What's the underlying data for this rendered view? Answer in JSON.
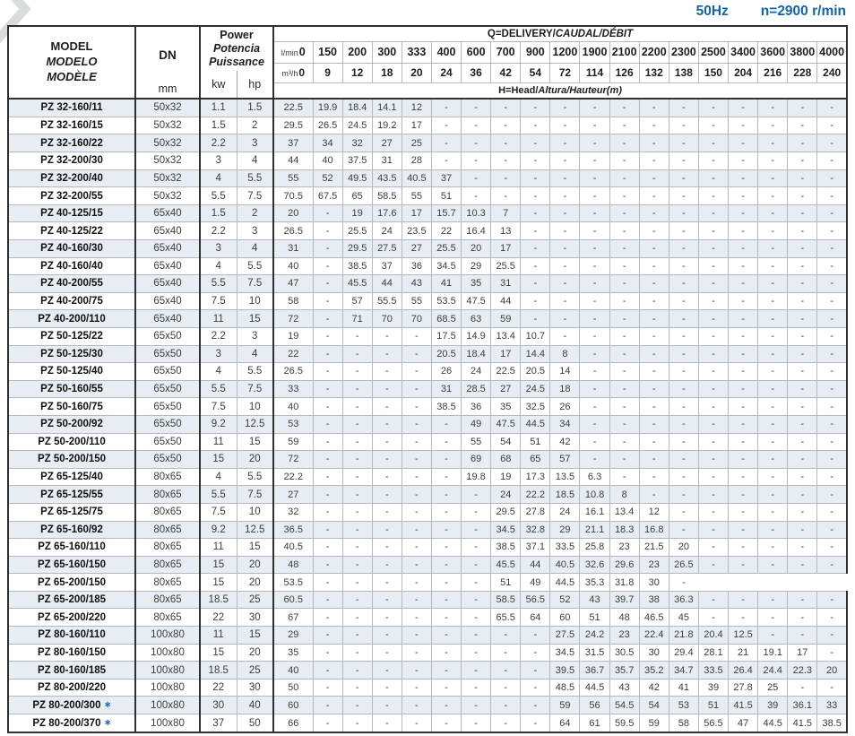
{
  "top_note": {
    "frequency": "50Hz",
    "speed": "n=2900 r/min"
  },
  "colors": {
    "accent_blue": "#1165ad",
    "stripe_row": "#e8ecf3",
    "border_dark": "#2f2f2f",
    "border_light": "#b3b9c2"
  },
  "table": {
    "star_symbol": "✱",
    "header": {
      "model_lines": [
        "MODEL",
        "MODELO",
        "MODÈLE"
      ],
      "dn": "DN",
      "dn_unit": "mm",
      "power_lines": [
        "Power",
        "Potencia",
        "Puissance"
      ],
      "unit_kw": "kw",
      "unit_hp": "hp",
      "q_roman": "Q=DELIVERY/",
      "q_italic": "CAUDAL/DÉBIT",
      "flow_lmin_label": "l/min",
      "flow_m3h_label": "m³/h",
      "lmin": [
        "0",
        "150",
        "200",
        "300",
        "333",
        "400",
        "600",
        "700",
        "900",
        "1200",
        "1900",
        "2100",
        "2200",
        "2300",
        "2500",
        "3400",
        "3600",
        "3800",
        "4000"
      ],
      "m3h": [
        "0",
        "9",
        "12",
        "18",
        "20",
        "24",
        "36",
        "42",
        "54",
        "72",
        "114",
        "126",
        "132",
        "138",
        "150",
        "204",
        "216",
        "228",
        "240"
      ],
      "head_roman": "H=Head/",
      "head_italic": "Altura/Hauteur(m)"
    },
    "rows": [
      {
        "model": "PZ 32-160/11",
        "star": false,
        "dn": "50x32",
        "kw": "1.1",
        "hp": "1.5",
        "heads": [
          "22.5",
          "19.9",
          "18.4",
          "14.1",
          "12",
          "-",
          "-",
          "-",
          "-",
          "-",
          "-",
          "-",
          "-",
          "-",
          "-",
          "-",
          "-",
          "-",
          "-"
        ]
      },
      {
        "model": "PZ 32-160/15",
        "star": false,
        "dn": "50x32",
        "kw": "1.5",
        "hp": "2",
        "heads": [
          "29.5",
          "26.5",
          "24.5",
          "19.2",
          "17",
          "-",
          "-",
          "-",
          "-",
          "-",
          "-",
          "-",
          "-",
          "-",
          "-",
          "-",
          "-",
          "-",
          "-"
        ]
      },
      {
        "model": "PZ 32-160/22",
        "star": false,
        "dn": "50x32",
        "kw": "2.2",
        "hp": "3",
        "heads": [
          "37",
          "34",
          "32",
          "27",
          "25",
          "-",
          "-",
          "-",
          "-",
          "-",
          "-",
          "-",
          "-",
          "-",
          "-",
          "-",
          "-",
          "-",
          "-"
        ]
      },
      {
        "model": "PZ 32-200/30",
        "star": false,
        "dn": "50x32",
        "kw": "3",
        "hp": "4",
        "heads": [
          "44",
          "40",
          "37.5",
          "31",
          "28",
          "-",
          "-",
          "-",
          "-",
          "-",
          "-",
          "-",
          "-",
          "-",
          "-",
          "-",
          "-",
          "-",
          "-"
        ]
      },
      {
        "model": "PZ 32-200/40",
        "star": false,
        "dn": "50x32",
        "kw": "4",
        "hp": "5.5",
        "heads": [
          "55",
          "52",
          "49.5",
          "43.5",
          "40.5",
          "37",
          "-",
          "-",
          "-",
          "-",
          "-",
          "-",
          "-",
          "-",
          "-",
          "-",
          "-",
          "-",
          "-"
        ]
      },
      {
        "model": "PZ 32-200/55",
        "star": false,
        "dn": "50x32",
        "kw": "5.5",
        "hp": "7.5",
        "heads": [
          "70.5",
          "67.5",
          "65",
          "58.5",
          "55",
          "51",
          "-",
          "-",
          "-",
          "-",
          "-",
          "-",
          "-",
          "-",
          "-",
          "-",
          "-",
          "-",
          "-"
        ]
      },
      {
        "model": "PZ 40-125/15",
        "star": false,
        "dn": "65x40",
        "kw": "1.5",
        "hp": "2",
        "heads": [
          "20",
          "-",
          "19",
          "17.6",
          "17",
          "15.7",
          "10.3",
          "7",
          "-",
          "-",
          "-",
          "-",
          "-",
          "-",
          "-",
          "-",
          "-",
          "-",
          "-"
        ]
      },
      {
        "model": "PZ 40-125/22",
        "star": false,
        "dn": "65x40",
        "kw": "2.2",
        "hp": "3",
        "heads": [
          "26.5",
          "-",
          "25.5",
          "24",
          "23.5",
          "22",
          "16.4",
          "13",
          "-",
          "-",
          "-",
          "-",
          "-",
          "-",
          "-",
          "-",
          "-",
          "-",
          "-"
        ]
      },
      {
        "model": "PZ 40-160/30",
        "star": false,
        "dn": "65x40",
        "kw": "3",
        "hp": "4",
        "heads": [
          "31",
          "-",
          "29.5",
          "27.5",
          "27",
          "25.5",
          "20",
          "17",
          "-",
          "-",
          "-",
          "-",
          "-",
          "-",
          "-",
          "-",
          "-",
          "-",
          "-"
        ]
      },
      {
        "model": "PZ 40-160/40",
        "star": false,
        "dn": "65x40",
        "kw": "4",
        "hp": "5.5",
        "heads": [
          "40",
          "-",
          "38.5",
          "37",
          "36",
          "34.5",
          "29",
          "25.5",
          "-",
          "-",
          "-",
          "-",
          "-",
          "-",
          "-",
          "-",
          "-",
          "-",
          "-"
        ]
      },
      {
        "model": "PZ 40-200/55",
        "star": false,
        "dn": "65x40",
        "kw": "5.5",
        "hp": "7.5",
        "heads": [
          "47",
          "-",
          "45.5",
          "44",
          "43",
          "41",
          "35",
          "31",
          "-",
          "-",
          "-",
          "-",
          "-",
          "-",
          "-",
          "-",
          "-",
          "-",
          "-"
        ]
      },
      {
        "model": "PZ 40-200/75",
        "star": false,
        "dn": "65x40",
        "kw": "7.5",
        "hp": "10",
        "heads": [
          "58",
          "-",
          "57",
          "55.5",
          "55",
          "53.5",
          "47.5",
          "44",
          "-",
          "-",
          "-",
          "-",
          "-",
          "-",
          "-",
          "-",
          "-",
          "-",
          "-"
        ]
      },
      {
        "model": "PZ 40-200/110",
        "star": false,
        "dn": "65x40",
        "kw": "11",
        "hp": "15",
        "heads": [
          "72",
          "-",
          "71",
          "70",
          "70",
          "68.5",
          "63",
          "59",
          "-",
          "-",
          "-",
          "-",
          "-",
          "-",
          "-",
          "-",
          "-",
          "-",
          "-"
        ]
      },
      {
        "model": "PZ 50-125/22",
        "star": false,
        "dn": "65x50",
        "kw": "2.2",
        "hp": "3",
        "heads": [
          "19",
          "-",
          "-",
          "-",
          "-",
          "17.5",
          "14.9",
          "13.4",
          "10.7",
          "-",
          "-",
          "-",
          "-",
          "-",
          "-",
          "-",
          "-",
          "-",
          "-"
        ]
      },
      {
        "model": "PZ 50-125/30",
        "star": false,
        "dn": "65x50",
        "kw": "3",
        "hp": "4",
        "heads": [
          "22",
          "-",
          "-",
          "-",
          "-",
          "20.5",
          "18.4",
          "17",
          "14.4",
          "8",
          "-",
          "-",
          "-",
          "-",
          "-",
          "-",
          "-",
          "-",
          "-"
        ]
      },
      {
        "model": "PZ 50-125/40",
        "star": false,
        "dn": "65x50",
        "kw": "4",
        "hp": "5.5",
        "heads": [
          "26.5",
          "-",
          "-",
          "-",
          "-",
          "26",
          "24",
          "22.5",
          "20.5",
          "14",
          "-",
          "-",
          "-",
          "-",
          "-",
          "-",
          "-",
          "-",
          "-"
        ]
      },
      {
        "model": "PZ 50-160/55",
        "star": false,
        "dn": "65x50",
        "kw": "5.5",
        "hp": "7.5",
        "heads": [
          "33",
          "-",
          "-",
          "-",
          "-",
          "31",
          "28.5",
          "27",
          "24.5",
          "18",
          "-",
          "-",
          "-",
          "-",
          "-",
          "-",
          "-",
          "-",
          "-"
        ]
      },
      {
        "model": "PZ 50-160/75",
        "star": false,
        "dn": "65x50",
        "kw": "7.5",
        "hp": "10",
        "heads": [
          "40",
          "-",
          "-",
          "-",
          "-",
          "38.5",
          "36",
          "35",
          "32.5",
          "26",
          "-",
          "-",
          "-",
          "-",
          "-",
          "-",
          "-",
          "-",
          "-"
        ]
      },
      {
        "model": "PZ 50-200/92",
        "star": false,
        "dn": "65x50",
        "kw": "9.2",
        "hp": "12.5",
        "heads": [
          "53",
          "-",
          "-",
          "-",
          "-",
          "-",
          "49",
          "47.5",
          "44.5",
          "34",
          "-",
          "-",
          "-",
          "-",
          "-",
          "-",
          "-",
          "-",
          "-"
        ]
      },
      {
        "model": "PZ 50-200/110",
        "star": false,
        "dn": "65x50",
        "kw": "11",
        "hp": "15",
        "heads": [
          "59",
          "-",
          "-",
          "-",
          "-",
          "-",
          "55",
          "54",
          "51",
          "42",
          "-",
          "-",
          "-",
          "-",
          "-",
          "-",
          "-",
          "-",
          "-"
        ]
      },
      {
        "model": "PZ 50-200/150",
        "star": false,
        "dn": "65x50",
        "kw": "15",
        "hp": "20",
        "heads": [
          "72",
          "-",
          "-",
          "-",
          "-",
          "-",
          "69",
          "68",
          "65",
          "57",
          "-",
          "-",
          "-",
          "-",
          "-",
          "-",
          "-",
          "-",
          "-"
        ]
      },
      {
        "model": "PZ 65-125/40",
        "star": false,
        "dn": "80x65",
        "kw": "4",
        "hp": "5.5",
        "heads": [
          "22.2",
          "-",
          "-",
          "-",
          "-",
          "-",
          "19.8",
          "19",
          "17.3",
          "13.5",
          "6.3",
          "-",
          "-",
          "-",
          "-",
          "-",
          "-",
          "-",
          "-"
        ]
      },
      {
        "model": "PZ 65-125/55",
        "star": false,
        "dn": "80x65",
        "kw": "5.5",
        "hp": "7.5",
        "heads": [
          "27",
          "-",
          "-",
          "-",
          "-",
          "-",
          "-",
          "24",
          "22.2",
          "18.5",
          "10.8",
          "8",
          "-",
          "-",
          "-",
          "-",
          "-",
          "-",
          "-"
        ]
      },
      {
        "model": "PZ 65-125/75",
        "star": false,
        "dn": "80x65",
        "kw": "7.5",
        "hp": "10",
        "heads": [
          "32",
          "-",
          "-",
          "-",
          "-",
          "-",
          "-",
          "29.5",
          "27.8",
          "24",
          "16.1",
          "13.4",
          "12",
          "-",
          "-",
          "-",
          "-",
          "-",
          "-"
        ]
      },
      {
        "model": "PZ 65-160/92",
        "star": false,
        "dn": "80x65",
        "kw": "9.2",
        "hp": "12.5",
        "heads": [
          "36.5",
          "-",
          "-",
          "-",
          "-",
          "-",
          "-",
          "34.5",
          "32.8",
          "29",
          "21.1",
          "18.3",
          "16.8",
          "-",
          "-",
          "-",
          "-",
          "-",
          "-"
        ]
      },
      {
        "model": "PZ 65-160/110",
        "star": false,
        "dn": "80x65",
        "kw": "11",
        "hp": "15",
        "heads": [
          "40.5",
          "-",
          "-",
          "-",
          "-",
          "-",
          "-",
          "38.5",
          "37.1",
          "33.5",
          "25.8",
          "23",
          "21.5",
          "20",
          "-",
          "-",
          "-",
          "-",
          "-"
        ]
      },
      {
        "model": "PZ 65-160/150",
        "star": false,
        "dn": "80x65",
        "kw": "15",
        "hp": "20",
        "heads": [
          "48",
          "-",
          "-",
          "-",
          "-",
          "-",
          "-",
          "45.5",
          "44",
          "40.5",
          "32.6",
          "29.6",
          "23",
          "26.5",
          "-",
          "-",
          "-",
          "-",
          "-"
        ]
      },
      {
        "model": "PZ 65-200/150",
        "star": false,
        "dn": "80x65",
        "kw": "15",
        "hp": "20",
        "heads": [
          "53.5",
          "-",
          "-",
          "-",
          "-",
          "-",
          "-",
          "51",
          "49",
          "44.5",
          "35.3",
          "31.8",
          "30",
          "-",
          "",
          "",
          "",
          "",
          ""
        ]
      },
      {
        "model": "PZ 65-200/185",
        "star": false,
        "dn": "80x65",
        "kw": "18.5",
        "hp": "25",
        "heads": [
          "60.5",
          "-",
          "-",
          "-",
          "-",
          "-",
          "-",
          "58.5",
          "56.5",
          "52",
          "43",
          "39.7",
          "38",
          "36.3",
          "-",
          "-",
          "-",
          "-",
          "-"
        ]
      },
      {
        "model": "PZ 65-200/220",
        "star": false,
        "dn": "80x65",
        "kw": "22",
        "hp": "30",
        "heads": [
          "67",
          "-",
          "-",
          "-",
          "-",
          "-",
          "-",
          "65.5",
          "64",
          "60",
          "51",
          "48",
          "46.5",
          "45",
          "-",
          "-",
          "-",
          "-",
          "-"
        ]
      },
      {
        "model": "PZ 80-160/110",
        "star": false,
        "dn": "100x80",
        "kw": "11",
        "hp": "15",
        "heads": [
          "29",
          "-",
          "-",
          "-",
          "-",
          "-",
          "-",
          "-",
          "-",
          "27.5",
          "24.2",
          "23",
          "22.4",
          "21.8",
          "20.4",
          "12.5",
          "-",
          "-",
          "-"
        ]
      },
      {
        "model": "PZ 80-160/150",
        "star": false,
        "dn": "100x80",
        "kw": "15",
        "hp": "20",
        "heads": [
          "35",
          "-",
          "-",
          "-",
          "-",
          "-",
          "-",
          "-",
          "-",
          "34.5",
          "31.5",
          "30.5",
          "30",
          "29.4",
          "28.1",
          "21",
          "19.1",
          "17",
          "-"
        ]
      },
      {
        "model": "PZ 80-160/185",
        "star": false,
        "dn": "100x80",
        "kw": "18.5",
        "hp": "25",
        "heads": [
          "40",
          "-",
          "-",
          "-",
          "-",
          "-",
          "-",
          "-",
          "-",
          "39.5",
          "36.7",
          "35.7",
          "35.2",
          "34.7",
          "33.5",
          "26.4",
          "24.4",
          "22.3",
          "20"
        ]
      },
      {
        "model": "PZ 80-200/220",
        "star": false,
        "dn": "100x80",
        "kw": "22",
        "hp": "30",
        "heads": [
          "50",
          "-",
          "-",
          "-",
          "-",
          "-",
          "-",
          "-",
          "-",
          "48.5",
          "44.5",
          "43",
          "42",
          "41",
          "39",
          "27.8",
          "25",
          "-",
          "-"
        ]
      },
      {
        "model": "PZ 80-200/300",
        "star": true,
        "dn": "100x80",
        "kw": "30",
        "hp": "40",
        "heads": [
          "60",
          "-",
          "-",
          "-",
          "-",
          "-",
          "-",
          "-",
          "-",
          "59",
          "56",
          "54.5",
          "54",
          "53",
          "51",
          "41.5",
          "39",
          "36.1",
          "33"
        ]
      },
      {
        "model": "PZ 80-200/370",
        "star": true,
        "dn": "100x80",
        "kw": "37",
        "hp": "50",
        "heads": [
          "66",
          "-",
          "-",
          "-",
          "-",
          "-",
          "-",
          "-",
          "-",
          "64",
          "61",
          "59.5",
          "59",
          "58",
          "56.5",
          "47",
          "44.5",
          "41.5",
          "38.5"
        ]
      }
    ]
  }
}
